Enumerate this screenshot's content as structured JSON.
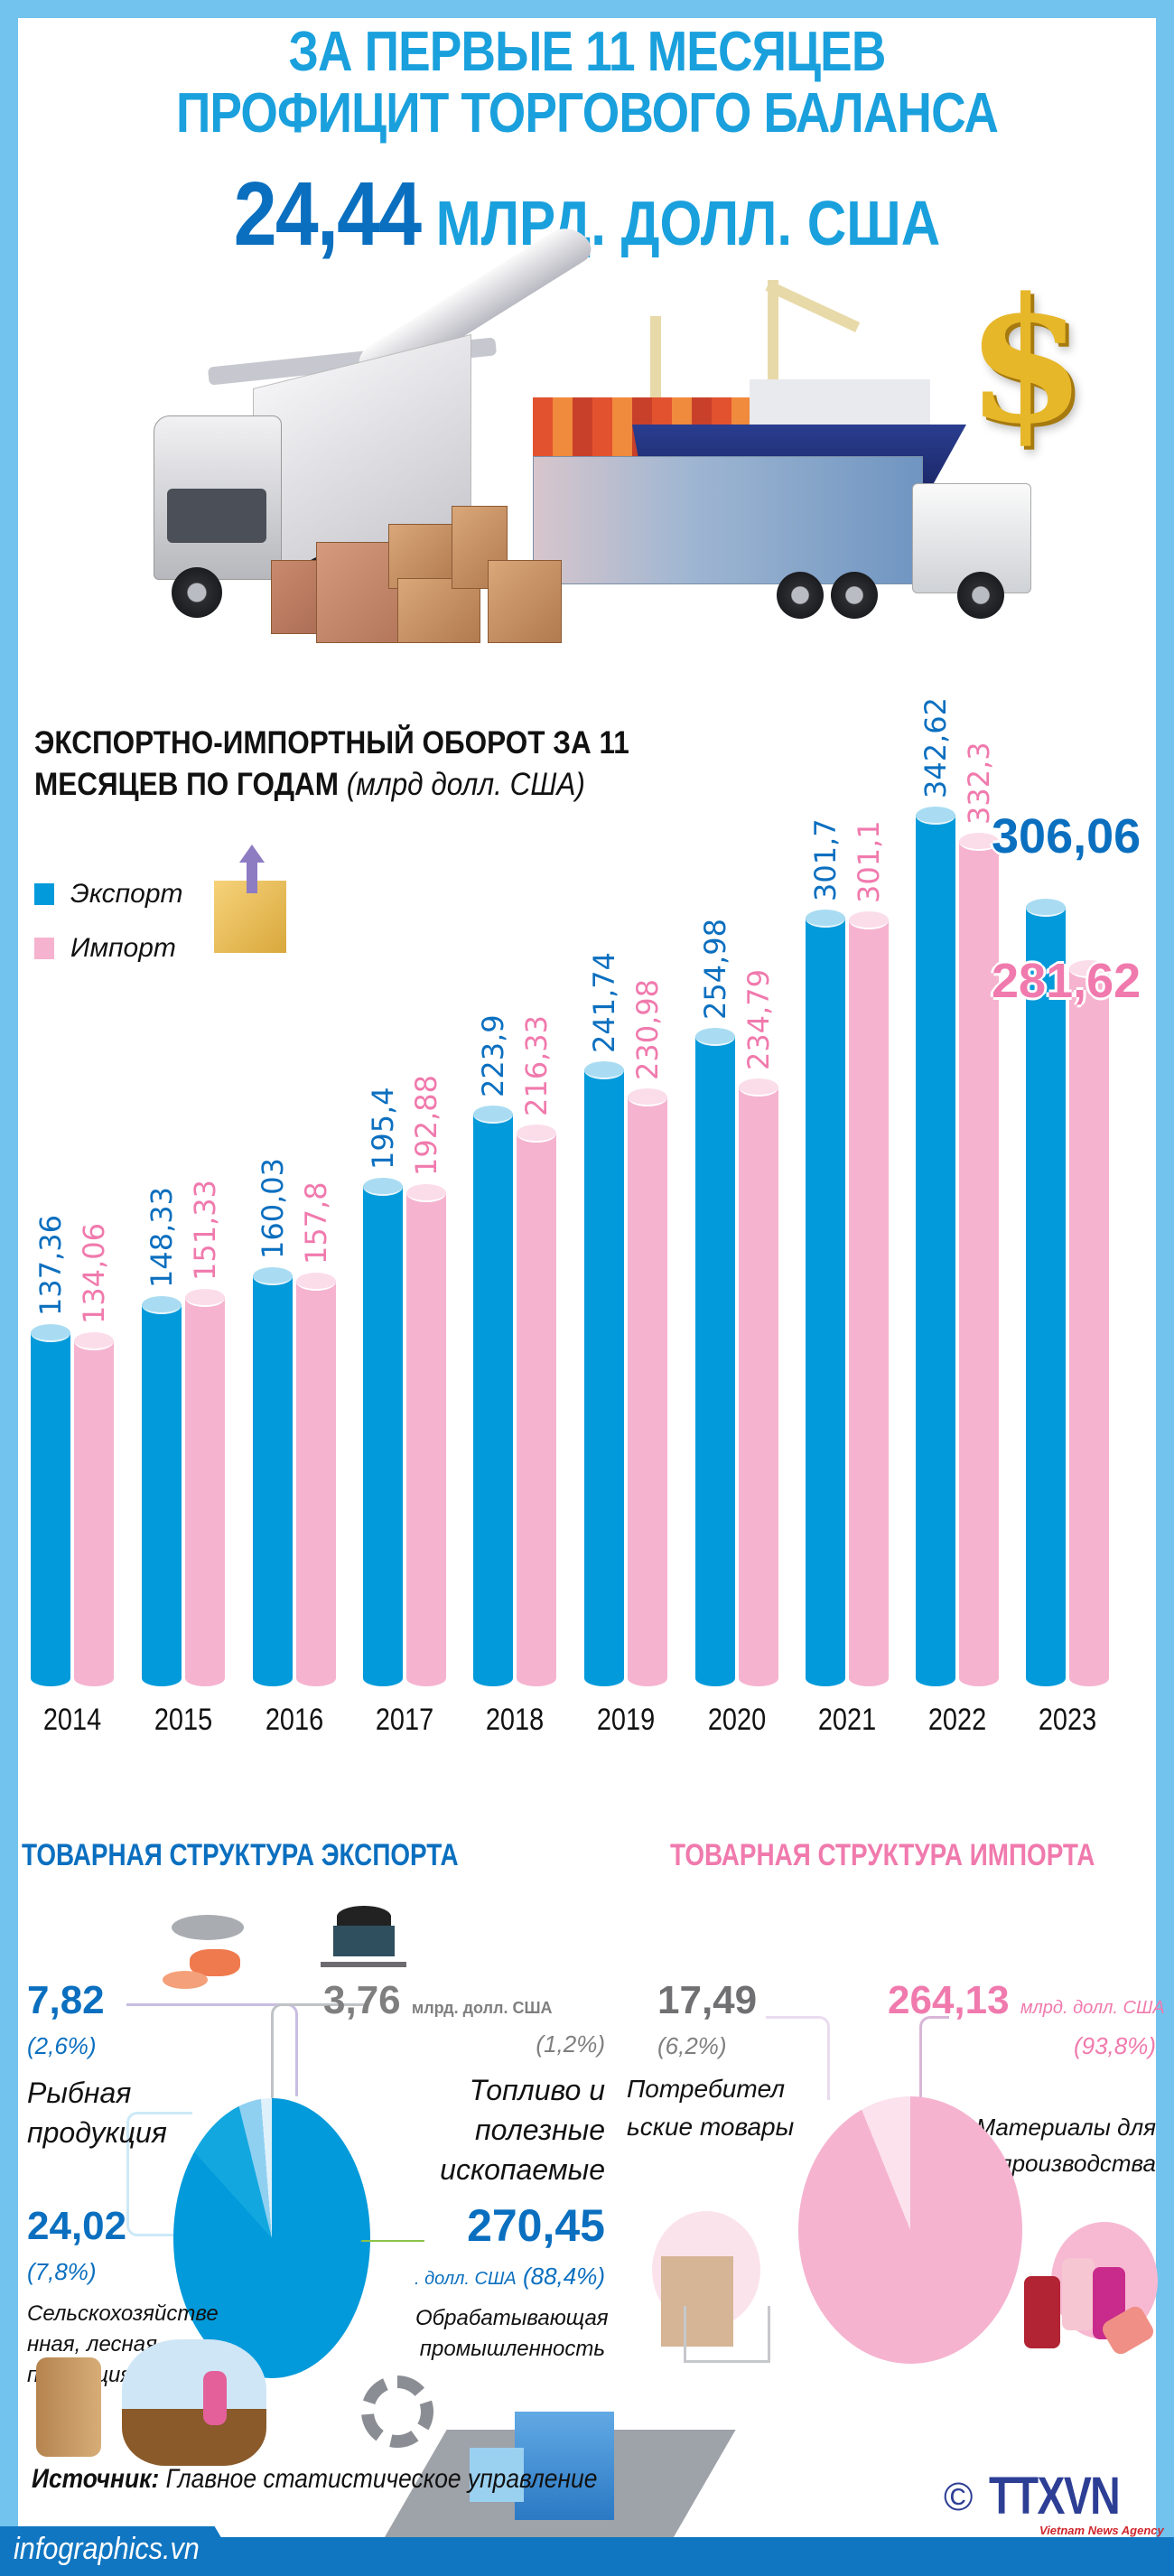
{
  "header": {
    "line1": "ЗА ПЕРВЫЕ 11 МЕСЯЦЕВ",
    "line2": "ПРОФИЦИТ ТОРГОВОГО БАЛАНСА",
    "surplus_value": "24,44",
    "surplus_unit": "МЛРД. ДОЛЛ. США",
    "hero_icon": "trade-logistics-illustration",
    "dollar_icon": "$"
  },
  "chart": {
    "title_bold": "ЭКСПОРТНО-ИМПОРТНЫЙ ОБОРОТ ЗА 11 МЕСЯЦЕВ ПО ГОДАМ",
    "title_unit": "(млрд долл. США)",
    "legend": [
      {
        "label": "Экспорт",
        "color": "#029ada"
      },
      {
        "label": "Импорт",
        "color": "#f5b3cf"
      }
    ],
    "highlight_export": "306,06",
    "highlight_import": "281,62"
  },
  "chart_data": {
    "type": "bar",
    "title": "ЭКСПОРТНО-ИМПОРТНЫЙ ОБОРОТ ЗА 11 МЕСЯЦЕВ ПО ГОДАМ (млрд долл. США)",
    "categories": [
      "2014",
      "2015",
      "2016",
      "2017",
      "2018",
      "2019",
      "2020",
      "2021",
      "2022",
      "2023"
    ],
    "series": [
      {
        "name": "Экспорт",
        "color": "#029ada",
        "values": [
          137.36,
          148.33,
          160.03,
          195.4,
          223.9,
          241.74,
          254.98,
          301.7,
          342.62,
          306.06
        ],
        "labels": [
          "137,36",
          "148,33",
          "160,03",
          "195,4",
          "223,9",
          "241,74",
          "254,98",
          "301,7",
          "342,62",
          "306,06"
        ]
      },
      {
        "name": "Импорт",
        "color": "#f5b3cf",
        "values": [
          134.06,
          151.33,
          157.8,
          192.88,
          216.33,
          230.98,
          234.79,
          301.1,
          332.3,
          281.62
        ],
        "labels": [
          "134,06",
          "151,33",
          "157,8",
          "192,88",
          "216,33",
          "230,98",
          "234,79",
          "301,1",
          "332,3",
          "281,62"
        ]
      }
    ],
    "xlabel": "",
    "ylabel": "млрд долл. США",
    "grid": false,
    "legend_position": "top-left"
  },
  "export_structure": {
    "title": "ТОВАРНАЯ СТРУКТУРА ЭКСПОРТА",
    "items": [
      {
        "value": "7,82",
        "pct": "(2,6%)",
        "label": "Рыбная продукция",
        "icon": "fish-seafood-icon"
      },
      {
        "value": "3,76",
        "unit": "млрд. долл. США",
        "pct": "(1,2%)",
        "label": "Топливо и полезные ископаемые",
        "icon": "coal-cart-icon"
      },
      {
        "value": "24,02",
        "pct": "(7,8%)",
        "label": "Сельскохозяйстве нная, лесная продукция",
        "icon": "agriculture-forestry-icon"
      },
      {
        "value": "270,45",
        "unit": "млрд. долл. США",
        "pct": "(88,4%)",
        "label": "Обрабатывающая промышленность",
        "icon": "factory-icon"
      }
    ],
    "unit_partial": ". долл. США"
  },
  "import_structure": {
    "title": "ТОВАРНАЯ СТРУКТУРА ИМПОРТА",
    "items": [
      {
        "value": "17,49",
        "pct": "(6,2%)",
        "label": "Потребител ьские товары",
        "icon": "grocery-basket-icon"
      },
      {
        "value": "264,13",
        "unit": "млрд. долл. США",
        "pct": "(93,8%)",
        "label": "Материалы для производства",
        "icon": "thread-spools-icon"
      }
    ]
  },
  "footer": {
    "source_label": "Источник:",
    "source_text": "Главное статистическое управление",
    "site": "infographics.vn",
    "copyright": "©",
    "agency": "TTXVN",
    "agency_sub": "Vietnam News Agency"
  }
}
